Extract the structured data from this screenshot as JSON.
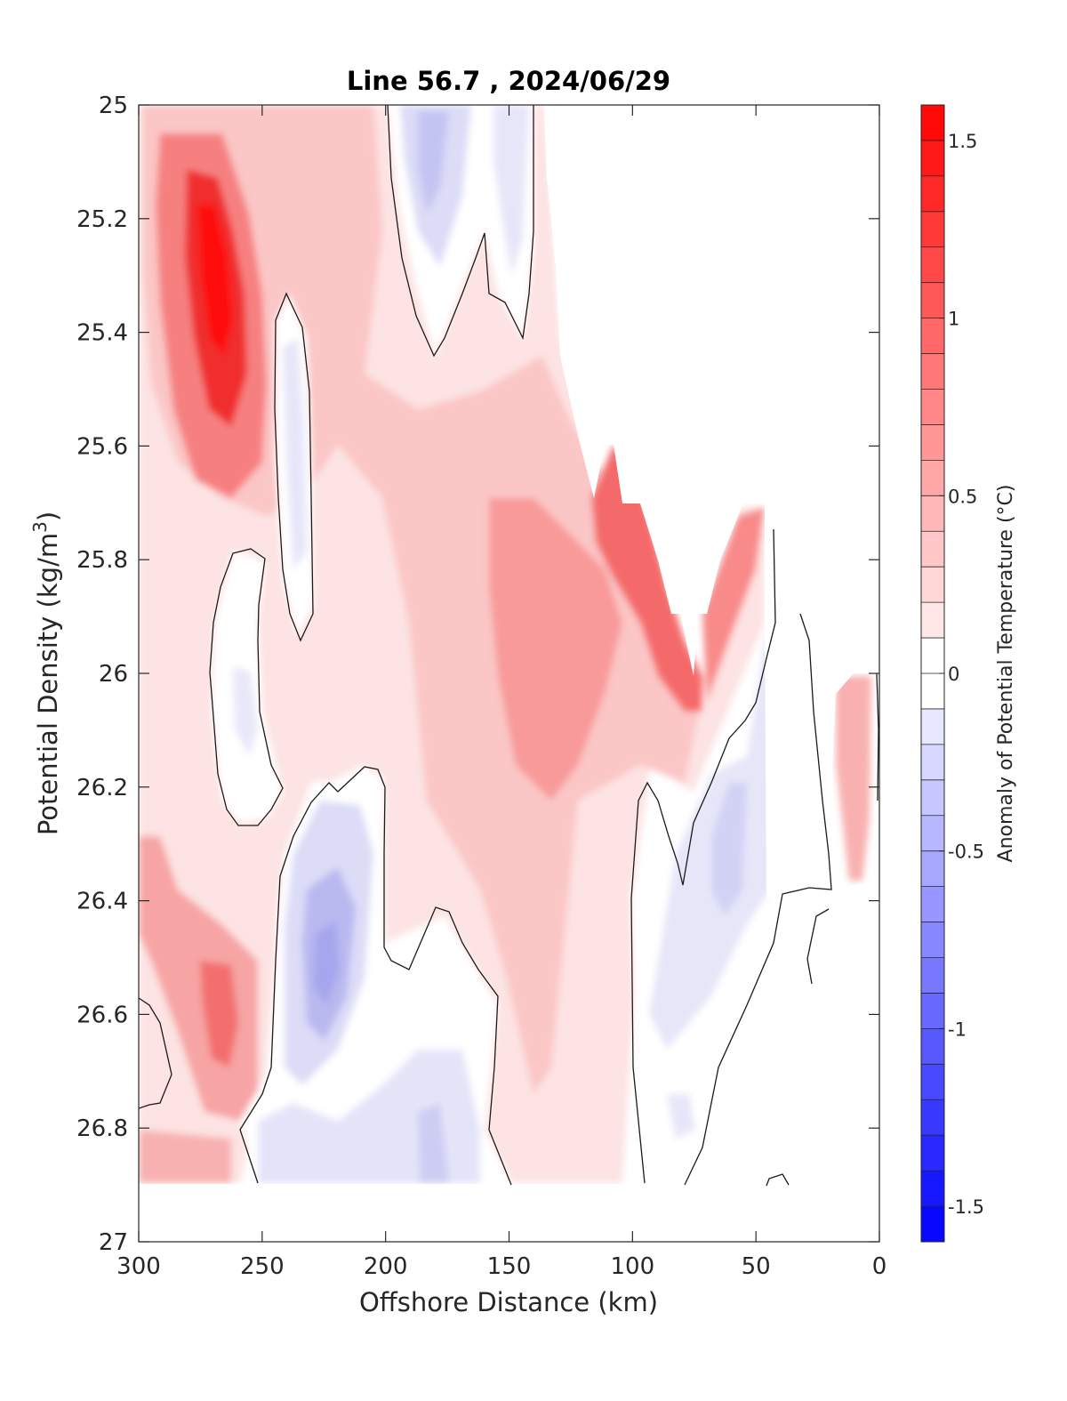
{
  "chart_data": {
    "type": "heatmap",
    "title": "Line 56.7 , 2024/06/29",
    "xlabel": "Offshore Distance (km)",
    "ylabel": "Potential Density (kg/m",
    "ylabel_sup": "3",
    "ylabel_close": ")",
    "xlim": [
      300,
      0
    ],
    "ylim": [
      25,
      27
    ],
    "x_reversed": true,
    "y_reversed": true,
    "x_ticks": [
      "300",
      "250",
      "200",
      "150",
      "100",
      "50",
      "0"
    ],
    "y_ticks": [
      "25",
      "25.2",
      "25.4",
      "25.6",
      "25.8",
      "26",
      "26.2",
      "26.4",
      "26.6",
      "26.8",
      "27"
    ],
    "colorbar": {
      "label": "Anomaly of Potential Temperature (°C)",
      "range": [
        -1.6,
        1.6
      ],
      "step": 0.1,
      "ticks": [
        "1.5",
        "1",
        "0.5",
        "0",
        "-0.5",
        "-1",
        "-1.5"
      ],
      "tick_values": [
        1.5,
        1,
        0.5,
        0,
        -0.5,
        -1,
        -1.5
      ],
      "colormap": "blue-white-red"
    },
    "grid": false,
    "data_extent_x": [
      0,
      300
    ],
    "data_extent_y": [
      25,
      26.9
    ],
    "anomaly_features": [
      {
        "x": 270,
        "y": 25.3,
        "value": 1.4
      },
      {
        "x": 100,
        "y": 25.9,
        "value": 0.9
      },
      {
        "x": 140,
        "y": 25.85,
        "value": 0.6
      },
      {
        "x": 265,
        "y": 26.6,
        "value": 0.8
      },
      {
        "x": 295,
        "y": 26.4,
        "value": 0.6
      },
      {
        "x": 225,
        "y": 26.5,
        "value": -0.5
      },
      {
        "x": 180,
        "y": 25.15,
        "value": -0.3
      },
      {
        "x": 235,
        "y": 25.6,
        "value": -0.1
      },
      {
        "x": 60,
        "y": 26.3,
        "value": -0.2
      },
      {
        "x": 35,
        "y": 26.1,
        "value": -0.25
      },
      {
        "x": 180,
        "y": 26.8,
        "value": -0.3
      },
      {
        "x": 10,
        "y": 26.1,
        "value": 0.4
      }
    ]
  }
}
